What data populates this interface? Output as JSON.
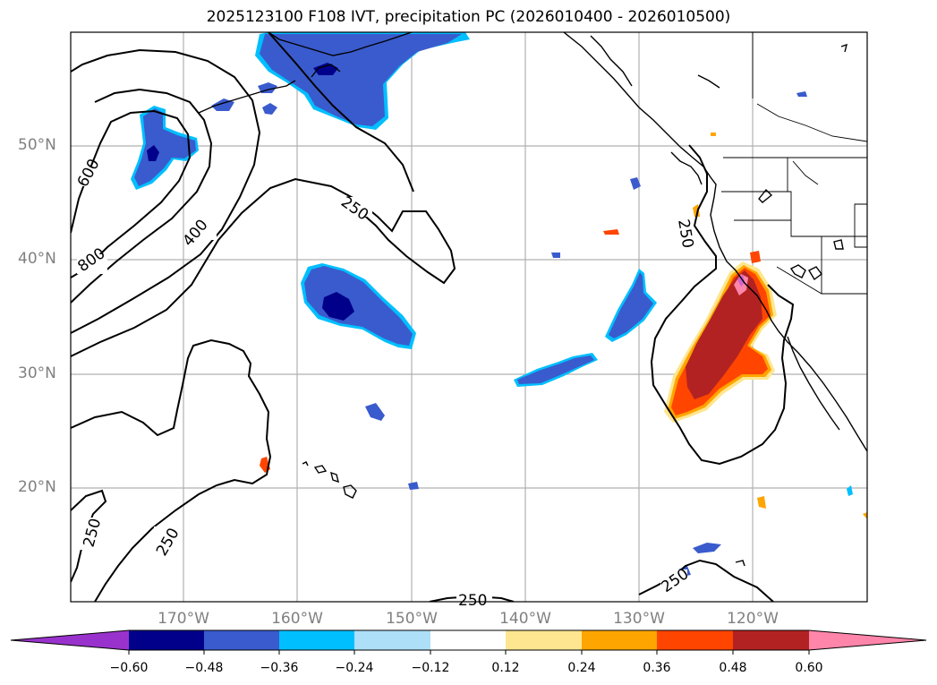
{
  "title": "2025123100 F108 IVT, precipitation PC (2026010400 - 2026010500)",
  "latitude_labels": [
    "50°N",
    "40°N",
    "30°N",
    "20°N"
  ],
  "longitude_labels": [
    "170°W",
    "160°W",
    "150°W",
    "140°W",
    "130°W",
    "120°W"
  ],
  "contour_labels": [
    "600",
    "800",
    "400",
    "250",
    "250",
    "250",
    "250",
    "250",
    "250"
  ],
  "colorbar": {
    "ticks": [
      "−0.60",
      "−0.48",
      "−0.36",
      "−0.24",
      "−0.12",
      "0.12",
      "0.24",
      "0.36",
      "0.48",
      "0.60"
    ],
    "colors": [
      "#9932cc",
      "#00008b",
      "#3a5bcd",
      "#00bfff",
      "#ade0f8",
      "#ffffff",
      "#fde68f",
      "#ffa500",
      "#ff4500",
      "#b22222",
      "#ff85aa"
    ]
  }
}
